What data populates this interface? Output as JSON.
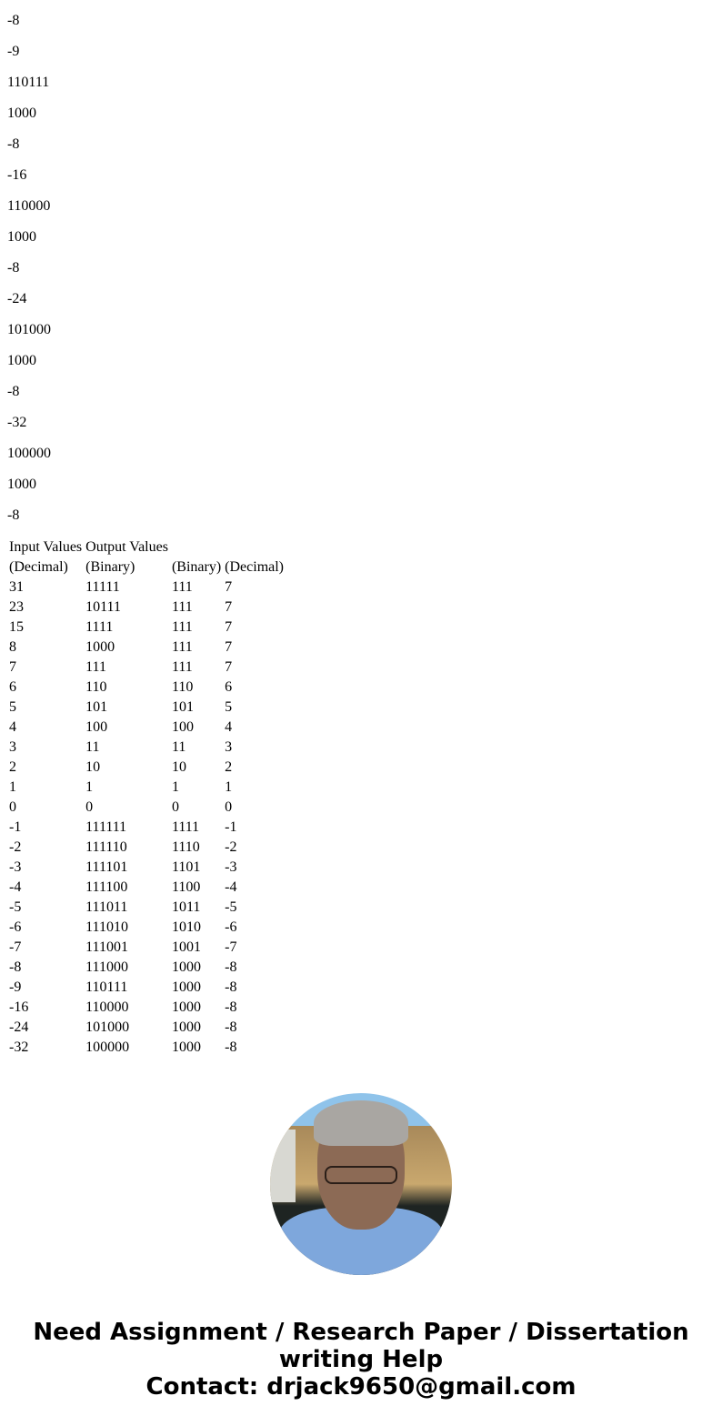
{
  "paragraphs": [
    "-8",
    "-9",
    "110111",
    "1000",
    "-8",
    "-16",
    "110000",
    "1000",
    "-8",
    "-24",
    "101000",
    "1000",
    "-8",
    "-32",
    "100000",
    "1000",
    "-8"
  ],
  "table": {
    "header1": [
      "Input Values",
      "Output Values",
      "",
      ""
    ],
    "header2": [
      "(Decimal)",
      "(Binary)",
      "(Binary)",
      "(Decimal)"
    ],
    "rows": [
      [
        "31",
        "11111",
        "111",
        "7"
      ],
      [
        "23",
        "10111",
        "111",
        "7"
      ],
      [
        "15",
        "1111",
        "111",
        "7"
      ],
      [
        "8",
        "1000",
        "111",
        "7"
      ],
      [
        "7",
        "111",
        "111",
        "7"
      ],
      [
        "6",
        "110",
        "110",
        "6"
      ],
      [
        "5",
        "101",
        "101",
        "5"
      ],
      [
        "4",
        "100",
        "100",
        "4"
      ],
      [
        "3",
        "11",
        "11",
        "3"
      ],
      [
        "2",
        "10",
        "10",
        "2"
      ],
      [
        "1",
        "1",
        "1",
        "1"
      ],
      [
        "0",
        "0",
        "0",
        "0"
      ],
      [
        "-1",
        "111111",
        "1111",
        "-1"
      ],
      [
        "-2",
        "111110",
        "1110",
        "-2"
      ],
      [
        "-3",
        "111101",
        "1101",
        "-3"
      ],
      [
        "-4",
        "111100",
        "1100",
        "-4"
      ],
      [
        "-5",
        "111011",
        "1011",
        "-5"
      ],
      [
        "-6",
        "111010",
        "1010",
        "-6"
      ],
      [
        "-7",
        "111001",
        "1001",
        "-7"
      ],
      [
        "-8",
        "111000",
        "1000",
        "-8"
      ],
      [
        "-9",
        "110111",
        "1000",
        "-8"
      ],
      [
        "-16",
        "110000",
        "1000",
        "-8"
      ],
      [
        "-24",
        "101000",
        "1000",
        "-8"
      ],
      [
        "-32",
        "100000",
        "1000",
        "-8"
      ]
    ]
  },
  "footer": {
    "line1": "Need Assignment / Research Paper / Dissertation",
    "line2": "writing Help",
    "line3": "Contact: drjack9650@gmail.com"
  }
}
